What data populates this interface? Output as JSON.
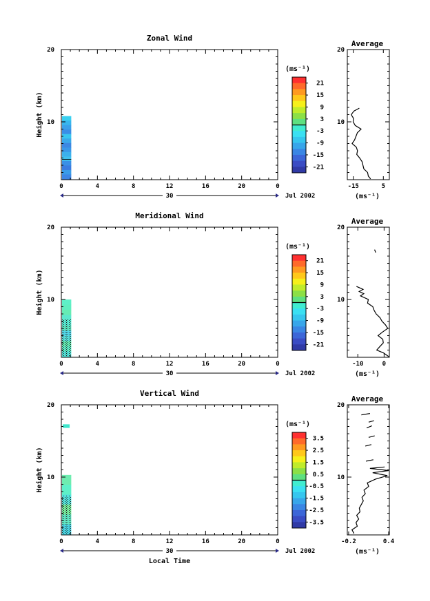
{
  "chart_data": [
    {
      "type": "heatmap",
      "title": "Zonal Wind",
      "ylabel": "Height (km)",
      "y_ticks": [
        "20",
        "10"
      ],
      "ylim": [
        2,
        20
      ],
      "x_ticks": [
        "0",
        "4",
        "8",
        "12",
        "16",
        "20",
        "0"
      ],
      "xlim": [
        0,
        24
      ],
      "date_label": "30",
      "month_label": "Jul 2002",
      "colorbar": {
        "unit": "(ms⁻¹)",
        "tick_labels": [
          "21",
          "15",
          "9",
          "3",
          "-3",
          "-9",
          "-15",
          "-21"
        ],
        "range": [
          -24,
          24
        ],
        "contour_at": 0
      },
      "data_extent": {
        "t_start": 0,
        "t_end": 1.1,
        "height_top": 10.8
      },
      "average": {
        "title": "Average",
        "x_ticks": [
          "-15",
          "5"
        ],
        "xlim": [
          -19,
          9
        ],
        "xlabel": "(ms⁻¹)",
        "y_ticks": [
          "20",
          "10"
        ],
        "ylim": [
          2,
          20
        ],
        "profile": [
          [
            -3.5,
            2.1
          ],
          [
            -5.0,
            2.5
          ],
          [
            -5.5,
            3.0
          ],
          [
            -8.0,
            3.5
          ],
          [
            -8.6,
            4.0
          ],
          [
            -9.2,
            4.5
          ],
          [
            -10.8,
            5.0
          ],
          [
            -12.7,
            5.5
          ],
          [
            -12.2,
            6.0
          ],
          [
            -13.0,
            6.5
          ],
          [
            -15.8,
            7.0
          ],
          [
            -14.2,
            7.5
          ],
          [
            -13.2,
            8.0
          ],
          [
            -12.3,
            8.5
          ],
          [
            -9.8,
            9.0
          ],
          [
            -13.7,
            9.5
          ],
          [
            -15.1,
            10.0
          ],
          [
            -14.9,
            10.5
          ],
          [
            -16.4,
            11.0
          ],
          [
            -14.6,
            11.5
          ],
          [
            -11.0,
            11.9
          ]
        ]
      }
    },
    {
      "type": "heatmap",
      "title": "Meridional Wind",
      "ylabel": "Height (km)",
      "y_ticks": [
        "20",
        "10"
      ],
      "ylim": [
        2,
        20
      ],
      "x_ticks": [
        "0",
        "4",
        "8",
        "12",
        "16",
        "20",
        "0"
      ],
      "xlim": [
        0,
        24
      ],
      "date_label": "30",
      "month_label": "Jul 2002",
      "colorbar": {
        "unit": "(ms⁻¹)",
        "tick_labels": [
          "21",
          "15",
          "9",
          "3",
          "-3",
          "-9",
          "-15",
          "-21"
        ],
        "range": [
          -24,
          24
        ],
        "contour_at": 0
      },
      "data_extent": {
        "t_start": 0,
        "t_end": 1.1,
        "height_top": 10.0
      },
      "average": {
        "title": "Average",
        "x_ticks": [
          "-10",
          "0"
        ],
        "xlim": [
          -14,
          2
        ],
        "xlabel": "(ms⁻¹)",
        "y_ticks": [
          "20",
          "10"
        ],
        "ylim": [
          2,
          20
        ],
        "profile": [
          [
            1.8,
            2.1
          ],
          [
            -0.2,
            2.6
          ],
          [
            -2.8,
            3.0
          ],
          [
            -1.6,
            3.5
          ],
          [
            -0.3,
            4.0
          ],
          [
            -0.5,
            4.5
          ],
          [
            -2.3,
            5.0
          ],
          [
            -0.6,
            5.5
          ],
          [
            1.4,
            6.0
          ],
          [
            0.5,
            6.5
          ],
          [
            -0.8,
            7.0
          ],
          [
            -1.6,
            7.5
          ],
          [
            -3.0,
            8.0
          ],
          [
            -3.8,
            8.5
          ],
          [
            -4.3,
            9.0
          ],
          [
            -6.3,
            9.5
          ],
          [
            -6.0,
            10.0
          ],
          [
            -9.0,
            10.5
          ],
          [
            -7.7,
            10.8
          ],
          [
            -9.5,
            11.1
          ],
          [
            -8.0,
            11.4
          ],
          [
            -10.5,
            11.8
          ]
        ],
        "fragments": [
          [
            [
              -3.2,
              16.5
            ],
            [
              -3.6,
              16.9
            ]
          ]
        ]
      }
    },
    {
      "type": "heatmap",
      "title": "Vertical Wind",
      "ylabel": "Height (km)",
      "xlabel": "Local Time",
      "y_ticks": [
        "20",
        "10"
      ],
      "ylim": [
        2,
        20
      ],
      "x_ticks": [
        "0",
        "4",
        "8",
        "12",
        "16",
        "20",
        "0"
      ],
      "xlim": [
        0,
        24
      ],
      "date_label": "30",
      "month_label": "Jul 2002",
      "colorbar": {
        "unit": "(ms⁻¹)",
        "tick_labels": [
          "3.5",
          "2.5",
          "1.5",
          "0.5",
          "-0.5",
          "-1.5",
          "-2.5",
          "-3.5"
        ],
        "range": [
          -4,
          4
        ],
        "contour_at": 0
      },
      "data_extent": {
        "t_start": 0,
        "t_end": 1.1,
        "height_top": 10.3,
        "extra_top_band": [
          16.8,
          17.3
        ]
      },
      "average": {
        "title": "Average",
        "x_ticks": [
          "-0.2",
          "0.4"
        ],
        "xlim": [
          -0.22,
          0.41
        ],
        "xlabel": "(ms⁻¹)",
        "y_ticks": [
          "20",
          "10"
        ],
        "ylim": [
          2,
          20
        ],
        "profile": [
          [
            -0.12,
            2.2
          ],
          [
            -0.15,
            2.7
          ],
          [
            -0.07,
            3.2
          ],
          [
            -0.09,
            3.7
          ],
          [
            -0.05,
            4.2
          ],
          [
            -0.08,
            4.7
          ],
          [
            -0.03,
            5.2
          ],
          [
            -0.04,
            5.7
          ],
          [
            -0.01,
            6.2
          ],
          [
            0.02,
            6.7
          ],
          [
            0.0,
            7.2
          ],
          [
            0.05,
            7.7
          ],
          [
            0.03,
            8.2
          ],
          [
            0.1,
            8.7
          ],
          [
            0.08,
            9.2
          ],
          [
            0.2,
            9.7
          ],
          [
            0.38,
            10.2
          ],
          [
            0.16,
            10.6
          ],
          [
            0.4,
            10.9
          ],
          [
            0.12,
            11.2
          ],
          [
            0.34,
            11.4
          ]
        ],
        "fragments": [
          [
            [
              0.06,
              12.2
            ],
            [
              0.17,
              12.4
            ]
          ],
          [
            [
              0.05,
              14.3
            ],
            [
              0.14,
              14.5
            ]
          ],
          [
            [
              0.1,
              15.5
            ],
            [
              0.19,
              15.7
            ]
          ],
          [
            [
              0.07,
              16.8
            ],
            [
              0.15,
              17.1
            ]
          ],
          [
            [
              0.1,
              17.6
            ],
            [
              0.18,
              17.8
            ]
          ],
          [
            [
              -0.01,
              18.6
            ],
            [
              0.12,
              18.8
            ]
          ]
        ]
      }
    }
  ]
}
